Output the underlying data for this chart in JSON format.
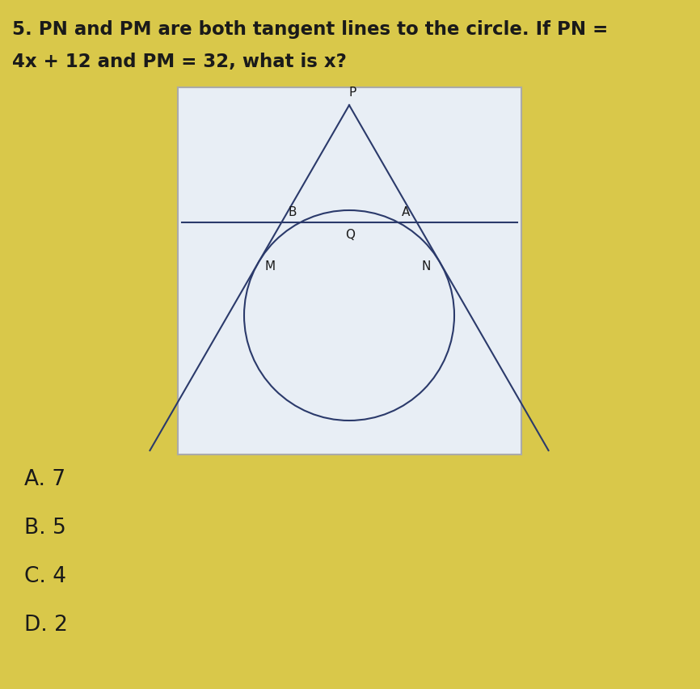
{
  "background_color": "#d9c84a",
  "title_line1": "5. PN and PM are both tangent lines to the circle. If PN =",
  "title_line2": "4x + 12 and PM = 32, what is x?",
  "title_fontsize": 16.5,
  "title_color": "#1a1a1a",
  "choices": [
    "A. 7",
    "B. 5",
    "C. 4",
    "D. 2"
  ],
  "choice_fontsize": 19,
  "choice_color": "#1a1a1a",
  "diagram_bg": "#e8eef5",
  "line_color": "#2b3a6b",
  "circle_color": "#2b3a6b",
  "label_color": "#1a1a1a",
  "label_fontsize": 11
}
